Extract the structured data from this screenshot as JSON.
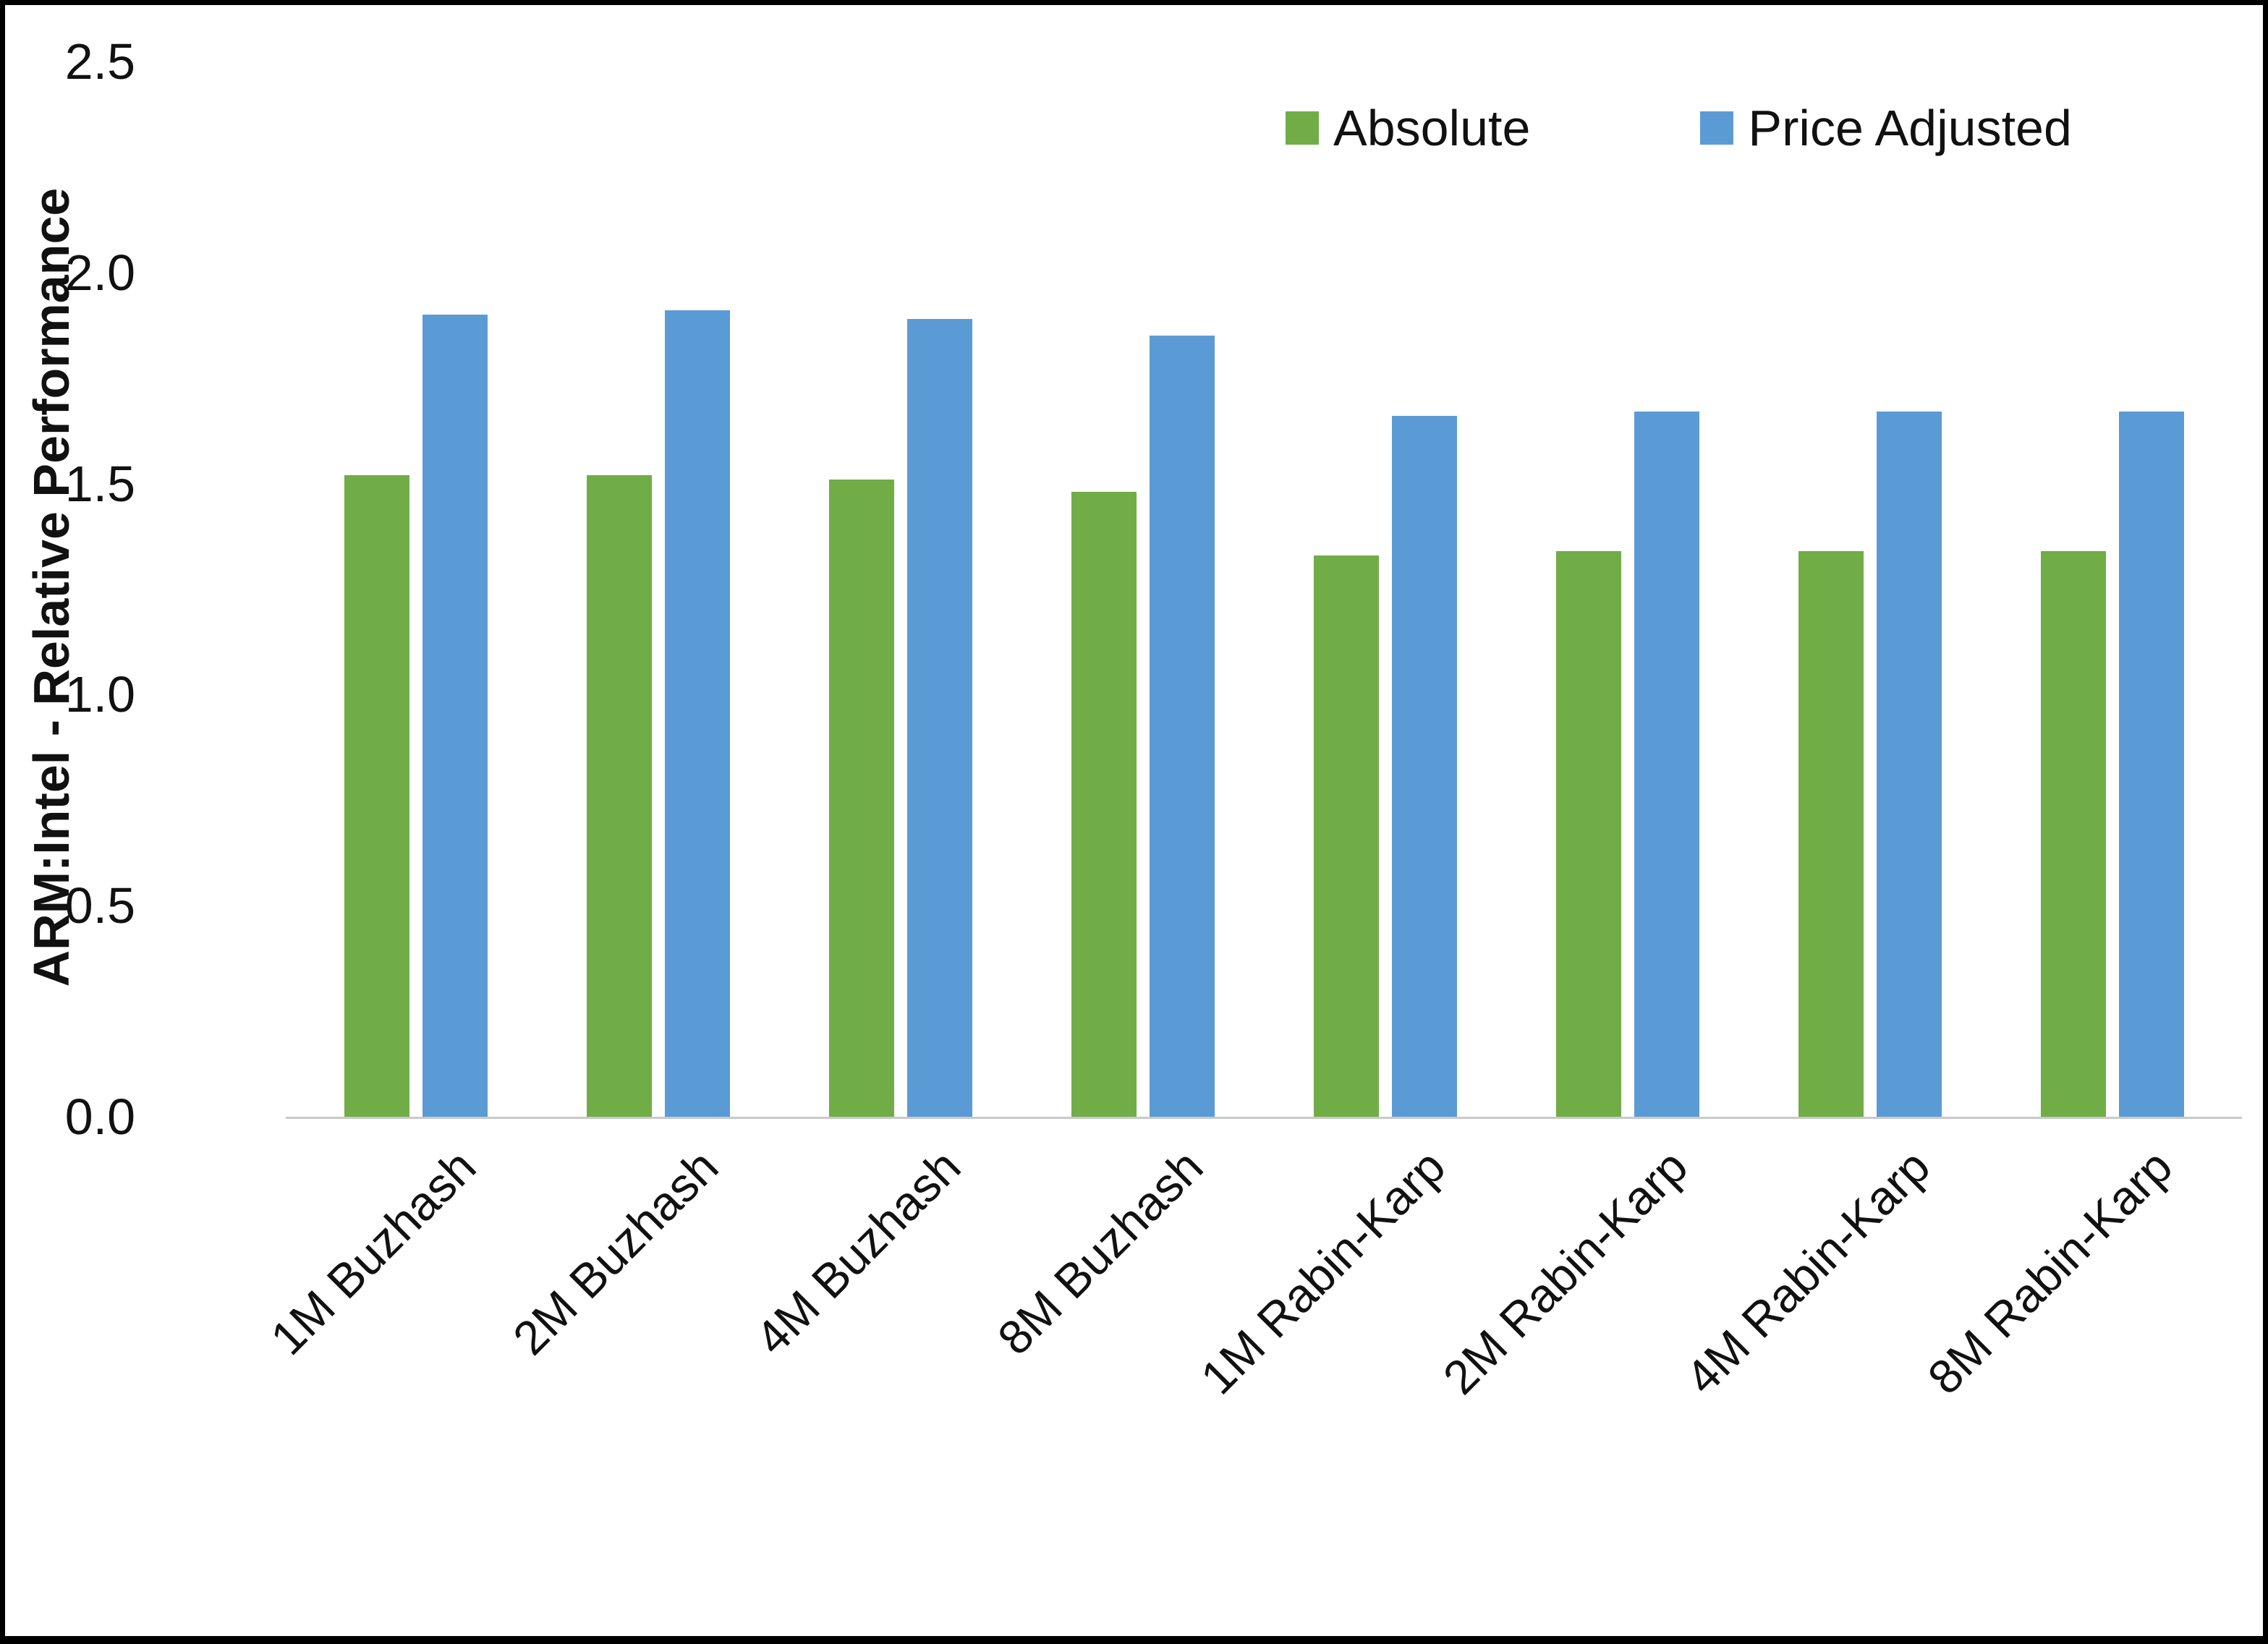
{
  "chart_data": {
    "type": "bar",
    "title": "",
    "xlabel": "",
    "ylabel": "ARM:Intel - Relative Performance",
    "ylim": [
      0,
      2.5
    ],
    "yticks": [
      "0.0",
      "0.5",
      "1.0",
      "1.5",
      "2.0",
      "2.5"
    ],
    "grid": false,
    "legend_position": "top-right",
    "categories": [
      "1M Buzhash",
      "2M Buzhash",
      "4M Buzhash",
      "8M Buzhash",
      "1M Rabin-Karp",
      "2M Rabin-Karp",
      "4M Rabin-Karp",
      "8M Rabin-Karp"
    ],
    "series": [
      {
        "name": "Absolute",
        "color": "#70AD47",
        "values": [
          1.52,
          1.52,
          1.51,
          1.48,
          1.33,
          1.34,
          1.34,
          1.34
        ]
      },
      {
        "name": "Price Adjusted",
        "color": "#5B9BD5",
        "values": [
          1.9,
          1.91,
          1.89,
          1.85,
          1.66,
          1.67,
          1.67,
          1.67
        ]
      }
    ]
  }
}
